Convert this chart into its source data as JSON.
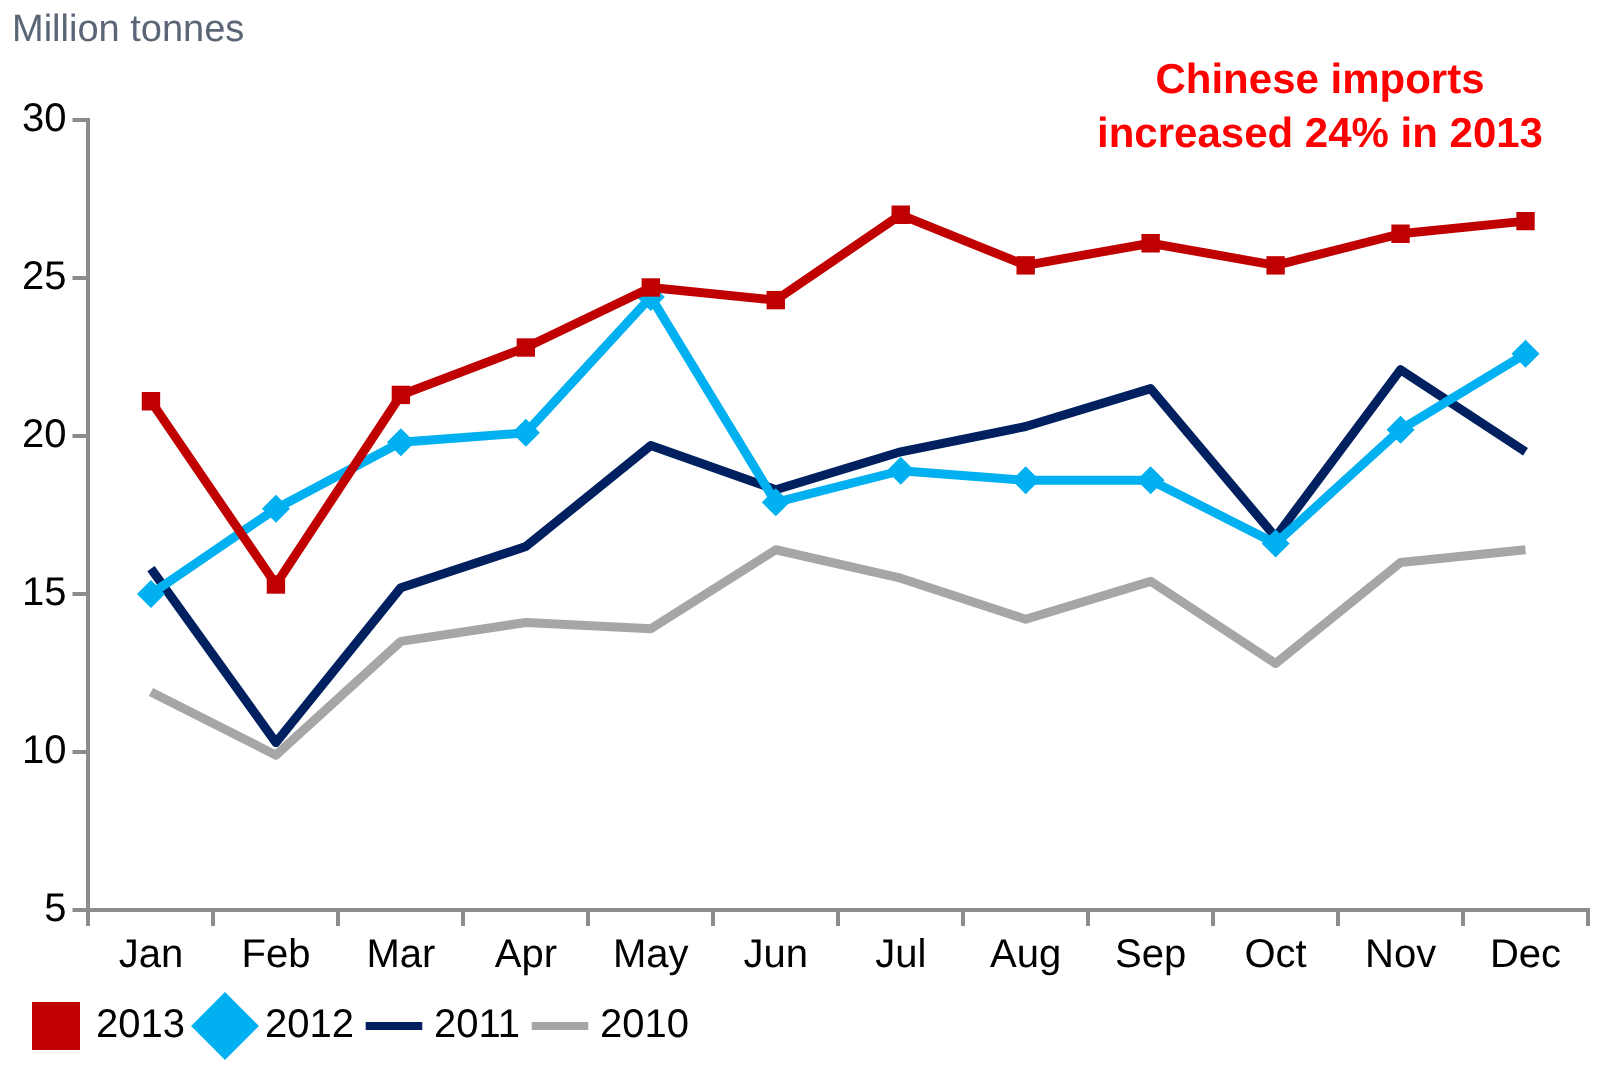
{
  "chart_data": {
    "type": "line",
    "ylabel": "Million tonnes",
    "annotations": [
      "Chinese imports\nincreased 24% in 2013"
    ],
    "categories": [
      "Jan",
      "Feb",
      "Mar",
      "Apr",
      "May",
      "Jun",
      "Jul",
      "Aug",
      "Sep",
      "Oct",
      "Nov",
      "Dec"
    ],
    "series": [
      {
        "name": "2013",
        "color": "#c00000",
        "marker": "square",
        "values": [
          21.1,
          15.3,
          21.3,
          22.8,
          24.7,
          24.3,
          27.0,
          25.4,
          26.1,
          25.4,
          26.4,
          26.8
        ]
      },
      {
        "name": "2012",
        "color": "#00b0f0",
        "marker": "diamond",
        "values": [
          15.0,
          17.7,
          19.8,
          20.1,
          24.4,
          17.9,
          18.9,
          18.6,
          18.6,
          16.6,
          20.2,
          22.6
        ]
      },
      {
        "name": "2011",
        "color": "#002060",
        "marker": "none",
        "values": [
          15.8,
          10.3,
          15.2,
          16.5,
          19.7,
          18.3,
          19.5,
          20.3,
          21.5,
          16.8,
          22.1,
          19.5
        ]
      },
      {
        "name": "2010",
        "color": "#a6a6a6",
        "marker": "none",
        "values": [
          11.9,
          9.9,
          13.5,
          14.1,
          13.9,
          16.4,
          15.5,
          14.2,
          15.4,
          12.8,
          16.0,
          16.4
        ]
      }
    ],
    "ylim": [
      5,
      30
    ],
    "yticks": [
      5,
      10,
      15,
      20,
      25,
      30
    ],
    "grid": false,
    "legend": "bottom left"
  }
}
